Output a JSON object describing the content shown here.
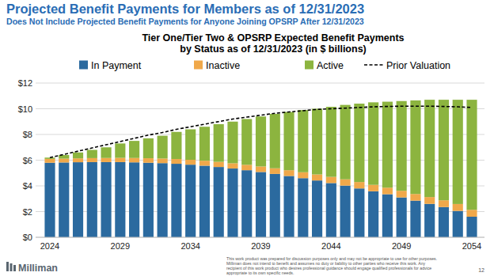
{
  "page": {
    "title": "Projected Benefit Payments for Members as of 12/31/2023",
    "subtitle": "Does Not Include Projected Benefit Payments for Anyone Joining OPSRP After 12/31/2023",
    "logo": "Milliman",
    "disclaimer": [
      "This work product was prepared for discussion purposes only and may not be appropriate to use for other purposes.",
      "Milliman does not intend to benefit and assumes no duty or liability to other parties who receive this work.  Any",
      "recipient of this work product who desires professional guidance should engage qualified professionals for advice",
      "appropriate to its own specific needs."
    ],
    "page_number": "12"
  },
  "chart_data": {
    "type": "bar",
    "stacked": true,
    "grid": true,
    "legend": "top",
    "title": [
      "Tier One/Tier Two & OPSRP Expected Benefit Payments",
      "by Status as of 12/31/2023 (in $ billions)"
    ],
    "categories": [
      "2024",
      null,
      null,
      null,
      null,
      "2029",
      null,
      null,
      null,
      null,
      "2034",
      null,
      null,
      null,
      null,
      "2039",
      null,
      null,
      null,
      null,
      "2044",
      null,
      null,
      null,
      null,
      "2049",
      null,
      null,
      null,
      null,
      "2054"
    ],
    "ylim": [
      0,
      12
    ],
    "yticks": [
      {
        "value": 0,
        "label": "$0"
      },
      {
        "value": 2,
        "label": "$2"
      },
      {
        "value": 4,
        "label": "$4"
      },
      {
        "value": 6,
        "label": "$6"
      },
      {
        "value": 8,
        "label": "$8"
      },
      {
        "value": 10,
        "label": "$10"
      },
      {
        "value": 12,
        "label": "$12"
      }
    ],
    "series": [
      {
        "name": "In Payment",
        "type": "bar",
        "color": "#2b6a9f",
        "values": [
          5.8,
          5.82,
          5.84,
          5.85,
          5.85,
          5.85,
          5.83,
          5.8,
          5.77,
          5.72,
          5.65,
          5.57,
          5.47,
          5.35,
          5.22,
          5.08,
          4.93,
          4.77,
          4.6,
          4.42,
          4.22,
          4.02,
          3.8,
          3.58,
          3.35,
          3.1,
          2.85,
          2.6,
          2.35,
          2.05,
          1.6
        ]
      },
      {
        "name": "Inactive",
        "type": "bar",
        "color": "#f0a84a",
        "values": [
          0.3,
          0.3,
          0.3,
          0.31,
          0.32,
          0.33,
          0.34,
          0.35,
          0.36,
          0.37,
          0.38,
          0.39,
          0.4,
          0.41,
          0.42,
          0.43,
          0.44,
          0.45,
          0.46,
          0.47,
          0.48,
          0.49,
          0.5,
          0.5,
          0.51,
          0.52,
          0.52,
          0.53,
          0.53,
          0.54,
          0.54
        ]
      },
      {
        "name": "Active",
        "type": "bar",
        "color": "#8cb43f",
        "values": [
          0.1,
          0.28,
          0.46,
          0.64,
          0.83,
          1.12,
          1.33,
          1.55,
          1.77,
          2.11,
          2.37,
          2.64,
          2.93,
          3.24,
          3.56,
          3.89,
          4.23,
          4.53,
          4.84,
          5.11,
          5.45,
          5.79,
          6.1,
          6.42,
          6.69,
          6.98,
          7.28,
          7.57,
          7.82,
          8.11,
          8.56
        ]
      },
      {
        "name": "Prior Valuation",
        "type": "line",
        "color": "#000000",
        "line_style": "dashed",
        "values": [
          6.2,
          6.45,
          6.7,
          6.95,
          7.2,
          7.45,
          7.7,
          7.95,
          8.15,
          8.4,
          8.6,
          8.8,
          9.0,
          9.2,
          9.35,
          9.5,
          9.65,
          9.75,
          9.85,
          9.95,
          10.0,
          10.05,
          10.1,
          10.15,
          10.18,
          10.2,
          10.2,
          10.2,
          10.18,
          10.15,
          10.1
        ]
      }
    ]
  }
}
